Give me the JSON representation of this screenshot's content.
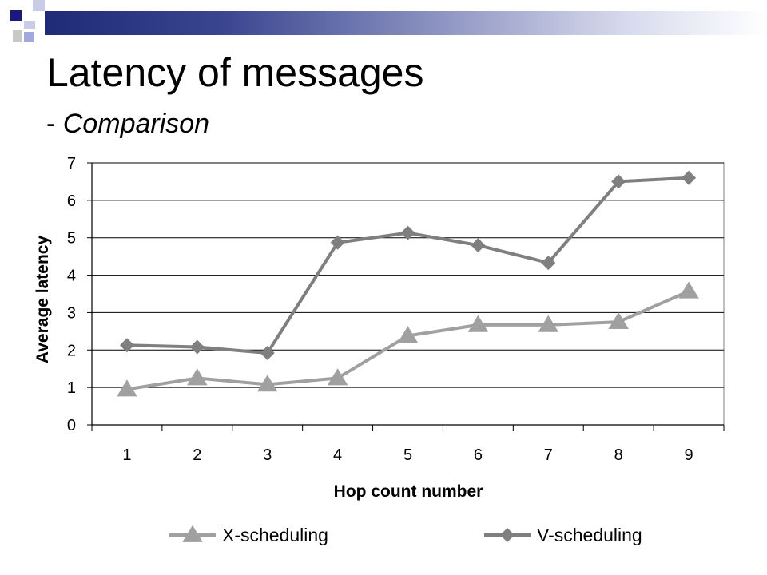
{
  "slide": {
    "title": "Latency of messages",
    "subtitle_prefix": "- ",
    "subtitle_emph": "Comparison"
  },
  "colors": {
    "navy": "#1a1a7c",
    "x_series": "#a0a0a0",
    "v_series": "#7f7f7f"
  },
  "chart_data": {
    "type": "line",
    "title": "",
    "xlabel": "Hop count number",
    "ylabel": "Average latency",
    "categories": [
      "1",
      "2",
      "3",
      "4",
      "5",
      "6",
      "7",
      "8",
      "9"
    ],
    "ylim": [
      0,
      7
    ],
    "yticks": [
      "0",
      "1",
      "2",
      "3",
      "4",
      "5",
      "6",
      "7"
    ],
    "grid": "horizontal",
    "legend": "bottom",
    "series": [
      {
        "name": "X-scheduling",
        "marker": "triangle",
        "color": "#a0a0a0",
        "values": [
          0.95,
          1.25,
          1.08,
          1.25,
          2.38,
          2.67,
          2.67,
          2.75,
          3.57
        ]
      },
      {
        "name": "V-scheduling",
        "marker": "diamond",
        "color": "#7f7f7f",
        "values": [
          2.13,
          2.08,
          1.92,
          4.87,
          5.13,
          4.8,
          4.33,
          6.5,
          6.6
        ]
      }
    ]
  }
}
